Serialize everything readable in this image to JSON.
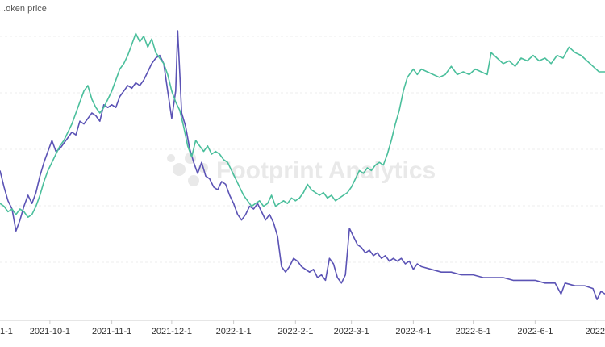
{
  "chart_data": {
    "type": "line",
    "xaxis_type": "date",
    "xlim": [
      "2021-09-06",
      "2022-07-06"
    ],
    "ylim_left": [
      0,
      1
    ],
    "ylim_right": [
      0,
      1
    ],
    "grid": "horizontal-dashed",
    "legend": {
      "position": "top-left",
      "entries": [
        "...oken price"
      ]
    },
    "x_ticks": [
      {
        "date": "2021-09-01",
        "label": "1-1"
      },
      {
        "date": "2021-10-01",
        "label": "2021-10-1"
      },
      {
        "date": "2021-11-01",
        "label": "2021-11-1"
      },
      {
        "date": "2021-12-01",
        "label": "2021-12-1"
      },
      {
        "date": "2022-01-01",
        "label": "2022-1-1"
      },
      {
        "date": "2022-02-01",
        "label": "2022-2-1"
      },
      {
        "date": "2022-03-01",
        "label": "2022-3-1"
      },
      {
        "date": "2022-04-01",
        "label": "2022-4-1"
      },
      {
        "date": "2022-05-01",
        "label": "2022-5-1"
      },
      {
        "date": "2022-06-01",
        "label": "2022-6-1"
      },
      {
        "date": "2022-07-01",
        "label": "2022"
      }
    ],
    "series": [
      {
        "color": "#5b53b5",
        "axis": "left",
        "points": [
          [
            "2021-09-06",
            0.49
          ],
          [
            "2021-09-08",
            0.43
          ],
          [
            "2021-09-10",
            0.38
          ],
          [
            "2021-09-12",
            0.35
          ],
          [
            "2021-09-14",
            0.27
          ],
          [
            "2021-09-16",
            0.31
          ],
          [
            "2021-09-18",
            0.36
          ],
          [
            "2021-09-20",
            0.4
          ],
          [
            "2021-09-22",
            0.37
          ],
          [
            "2021-09-24",
            0.41
          ],
          [
            "2021-09-26",
            0.47
          ],
          [
            "2021-09-28",
            0.52
          ],
          [
            "2021-09-30",
            0.56
          ],
          [
            "2021-10-02",
            0.6
          ],
          [
            "2021-10-04",
            0.56
          ],
          [
            "2021-10-06",
            0.57
          ],
          [
            "2021-10-08",
            0.59
          ],
          [
            "2021-10-10",
            0.61
          ],
          [
            "2021-10-12",
            0.63
          ],
          [
            "2021-10-14",
            0.62
          ],
          [
            "2021-10-16",
            0.67
          ],
          [
            "2021-10-18",
            0.66
          ],
          [
            "2021-10-20",
            0.68
          ],
          [
            "2021-10-22",
            0.7
          ],
          [
            "2021-10-24",
            0.69
          ],
          [
            "2021-10-26",
            0.67
          ],
          [
            "2021-10-28",
            0.73
          ],
          [
            "2021-10-30",
            0.72
          ],
          [
            "2021-11-01",
            0.73
          ],
          [
            "2021-11-03",
            0.72
          ],
          [
            "2021-11-05",
            0.76
          ],
          [
            "2021-11-07",
            0.78
          ],
          [
            "2021-11-09",
            0.8
          ],
          [
            "2021-11-11",
            0.79
          ],
          [
            "2021-11-13",
            0.81
          ],
          [
            "2021-11-15",
            0.8
          ],
          [
            "2021-11-17",
            0.82
          ],
          [
            "2021-11-19",
            0.85
          ],
          [
            "2021-11-21",
            0.88
          ],
          [
            "2021-11-23",
            0.9
          ],
          [
            "2021-11-25",
            0.91
          ],
          [
            "2021-11-27",
            0.88
          ],
          [
            "2021-11-29",
            0.78
          ],
          [
            "2021-12-01",
            0.68
          ],
          [
            "2021-12-03",
            0.78
          ],
          [
            "2021-12-04",
            1.0
          ],
          [
            "2021-12-05",
            0.85
          ],
          [
            "2021-12-06",
            0.7
          ],
          [
            "2021-12-08",
            0.65
          ],
          [
            "2021-12-10",
            0.57
          ],
          [
            "2021-12-12",
            0.52
          ],
          [
            "2021-12-14",
            0.48
          ],
          [
            "2021-12-16",
            0.52
          ],
          [
            "2021-12-18",
            0.47
          ],
          [
            "2021-12-20",
            0.46
          ],
          [
            "2021-12-22",
            0.43
          ],
          [
            "2021-12-24",
            0.42
          ],
          [
            "2021-12-26",
            0.45
          ],
          [
            "2021-12-28",
            0.44
          ],
          [
            "2021-12-30",
            0.4
          ],
          [
            "2022-01-01",
            0.37
          ],
          [
            "2022-01-03",
            0.33
          ],
          [
            "2022-01-05",
            0.31
          ],
          [
            "2022-01-07",
            0.33
          ],
          [
            "2022-01-09",
            0.36
          ],
          [
            "2022-01-11",
            0.35
          ],
          [
            "2022-01-13",
            0.37
          ],
          [
            "2022-01-15",
            0.34
          ],
          [
            "2022-01-17",
            0.31
          ],
          [
            "2022-01-19",
            0.33
          ],
          [
            "2022-01-21",
            0.3
          ],
          [
            "2022-01-23",
            0.25
          ],
          [
            "2022-01-25",
            0.14
          ],
          [
            "2022-01-27",
            0.12
          ],
          [
            "2022-01-29",
            0.14
          ],
          [
            "2022-01-31",
            0.17
          ],
          [
            "2022-02-02",
            0.16
          ],
          [
            "2022-02-04",
            0.14
          ],
          [
            "2022-02-06",
            0.13
          ],
          [
            "2022-02-08",
            0.12
          ],
          [
            "2022-02-10",
            0.13
          ],
          [
            "2022-02-12",
            0.1
          ],
          [
            "2022-02-14",
            0.11
          ],
          [
            "2022-02-16",
            0.09
          ],
          [
            "2022-02-18",
            0.17
          ],
          [
            "2022-02-20",
            0.15
          ],
          [
            "2022-02-22",
            0.1
          ],
          [
            "2022-02-24",
            0.08
          ],
          [
            "2022-02-26",
            0.11
          ],
          [
            "2022-02-28",
            0.28
          ],
          [
            "2022-03-02",
            0.25
          ],
          [
            "2022-03-04",
            0.22
          ],
          [
            "2022-03-06",
            0.21
          ],
          [
            "2022-03-08",
            0.19
          ],
          [
            "2022-03-10",
            0.2
          ],
          [
            "2022-03-12",
            0.18
          ],
          [
            "2022-03-14",
            0.19
          ],
          [
            "2022-03-16",
            0.17
          ],
          [
            "2022-03-18",
            0.18
          ],
          [
            "2022-03-20",
            0.16
          ],
          [
            "2022-03-22",
            0.17
          ],
          [
            "2022-03-24",
            0.16
          ],
          [
            "2022-03-26",
            0.17
          ],
          [
            "2022-03-28",
            0.15
          ],
          [
            "2022-03-30",
            0.16
          ],
          [
            "2022-04-01",
            0.13
          ],
          [
            "2022-04-03",
            0.15
          ],
          [
            "2022-04-05",
            0.14
          ],
          [
            "2022-04-10",
            0.13
          ],
          [
            "2022-04-15",
            0.12
          ],
          [
            "2022-04-20",
            0.12
          ],
          [
            "2022-04-25",
            0.11
          ],
          [
            "2022-05-01",
            0.11
          ],
          [
            "2022-05-06",
            0.1
          ],
          [
            "2022-05-11",
            0.1
          ],
          [
            "2022-05-16",
            0.1
          ],
          [
            "2022-05-21",
            0.09
          ],
          [
            "2022-05-26",
            0.09
          ],
          [
            "2022-06-01",
            0.09
          ],
          [
            "2022-06-06",
            0.08
          ],
          [
            "2022-06-11",
            0.08
          ],
          [
            "2022-06-14",
            0.04
          ],
          [
            "2022-06-16",
            0.08
          ],
          [
            "2022-06-21",
            0.07
          ],
          [
            "2022-06-26",
            0.07
          ],
          [
            "2022-06-30",
            0.06
          ],
          [
            "2022-07-02",
            0.02
          ],
          [
            "2022-07-04",
            0.05
          ],
          [
            "2022-07-06",
            0.04
          ]
        ]
      },
      {
        "color": "#4bbf9c",
        "axis": "right",
        "points": [
          [
            "2021-09-06",
            0.37
          ],
          [
            "2021-09-08",
            0.36
          ],
          [
            "2021-09-10",
            0.34
          ],
          [
            "2021-09-12",
            0.35
          ],
          [
            "2021-09-14",
            0.33
          ],
          [
            "2021-09-16",
            0.35
          ],
          [
            "2021-09-18",
            0.34
          ],
          [
            "2021-09-20",
            0.32
          ],
          [
            "2021-09-22",
            0.33
          ],
          [
            "2021-09-24",
            0.36
          ],
          [
            "2021-09-26",
            0.4
          ],
          [
            "2021-09-28",
            0.45
          ],
          [
            "2021-09-30",
            0.49
          ],
          [
            "2021-10-02",
            0.52
          ],
          [
            "2021-10-04",
            0.55
          ],
          [
            "2021-10-06",
            0.58
          ],
          [
            "2021-10-08",
            0.6
          ],
          [
            "2021-10-10",
            0.63
          ],
          [
            "2021-10-12",
            0.66
          ],
          [
            "2021-10-14",
            0.7
          ],
          [
            "2021-10-16",
            0.74
          ],
          [
            "2021-10-18",
            0.78
          ],
          [
            "2021-10-20",
            0.8
          ],
          [
            "2021-10-22",
            0.75
          ],
          [
            "2021-10-24",
            0.72
          ],
          [
            "2021-10-26",
            0.7
          ],
          [
            "2021-10-28",
            0.72
          ],
          [
            "2021-10-30",
            0.75
          ],
          [
            "2021-11-01",
            0.78
          ],
          [
            "2021-11-03",
            0.82
          ],
          [
            "2021-11-05",
            0.86
          ],
          [
            "2021-11-07",
            0.88
          ],
          [
            "2021-11-09",
            0.91
          ],
          [
            "2021-11-11",
            0.95
          ],
          [
            "2021-11-13",
            0.99
          ],
          [
            "2021-11-15",
            0.96
          ],
          [
            "2021-11-17",
            0.98
          ],
          [
            "2021-11-19",
            0.94
          ],
          [
            "2021-11-21",
            0.97
          ],
          [
            "2021-11-23",
            0.92
          ],
          [
            "2021-11-25",
            0.9
          ],
          [
            "2021-11-27",
            0.88
          ],
          [
            "2021-11-29",
            0.84
          ],
          [
            "2021-12-01",
            0.78
          ],
          [
            "2021-12-03",
            0.74
          ],
          [
            "2021-12-05",
            0.71
          ],
          [
            "2021-12-07",
            0.65
          ],
          [
            "2021-12-09",
            0.58
          ],
          [
            "2021-12-11",
            0.54
          ],
          [
            "2021-12-13",
            0.6
          ],
          [
            "2021-12-15",
            0.58
          ],
          [
            "2021-12-17",
            0.56
          ],
          [
            "2021-12-19",
            0.58
          ],
          [
            "2021-12-21",
            0.55
          ],
          [
            "2021-12-23",
            0.56
          ],
          [
            "2021-12-25",
            0.55
          ],
          [
            "2021-12-27",
            0.53
          ],
          [
            "2021-12-29",
            0.52
          ],
          [
            "2021-12-31",
            0.49
          ],
          [
            "2022-01-02",
            0.46
          ],
          [
            "2022-01-04",
            0.43
          ],
          [
            "2022-01-06",
            0.4
          ],
          [
            "2022-01-08",
            0.38
          ],
          [
            "2022-01-10",
            0.36
          ],
          [
            "2022-01-12",
            0.37
          ],
          [
            "2022-01-14",
            0.38
          ],
          [
            "2022-01-16",
            0.36
          ],
          [
            "2022-01-18",
            0.37
          ],
          [
            "2022-01-20",
            0.4
          ],
          [
            "2022-01-22",
            0.36
          ],
          [
            "2022-01-24",
            0.37
          ],
          [
            "2022-01-26",
            0.38
          ],
          [
            "2022-01-28",
            0.37
          ],
          [
            "2022-01-30",
            0.39
          ],
          [
            "2022-02-01",
            0.38
          ],
          [
            "2022-02-03",
            0.39
          ],
          [
            "2022-02-05",
            0.41
          ],
          [
            "2022-02-07",
            0.44
          ],
          [
            "2022-02-09",
            0.42
          ],
          [
            "2022-02-11",
            0.41
          ],
          [
            "2022-02-13",
            0.4
          ],
          [
            "2022-02-15",
            0.41
          ],
          [
            "2022-02-17",
            0.39
          ],
          [
            "2022-02-19",
            0.4
          ],
          [
            "2022-02-21",
            0.38
          ],
          [
            "2022-02-23",
            0.39
          ],
          [
            "2022-02-25",
            0.4
          ],
          [
            "2022-02-27",
            0.41
          ],
          [
            "2022-03-01",
            0.43
          ],
          [
            "2022-03-03",
            0.46
          ],
          [
            "2022-03-05",
            0.49
          ],
          [
            "2022-03-07",
            0.48
          ],
          [
            "2022-03-09",
            0.5
          ],
          [
            "2022-03-11",
            0.49
          ],
          [
            "2022-03-13",
            0.51
          ],
          [
            "2022-03-15",
            0.52
          ],
          [
            "2022-03-17",
            0.51
          ],
          [
            "2022-03-19",
            0.55
          ],
          [
            "2022-03-21",
            0.6
          ],
          [
            "2022-03-23",
            0.66
          ],
          [
            "2022-03-25",
            0.71
          ],
          [
            "2022-03-27",
            0.78
          ],
          [
            "2022-03-29",
            0.83
          ],
          [
            "2022-04-01",
            0.86
          ],
          [
            "2022-04-03",
            0.84
          ],
          [
            "2022-04-05",
            0.86
          ],
          [
            "2022-04-08",
            0.85
          ],
          [
            "2022-04-11",
            0.84
          ],
          [
            "2022-04-14",
            0.83
          ],
          [
            "2022-04-17",
            0.84
          ],
          [
            "2022-04-20",
            0.87
          ],
          [
            "2022-04-23",
            0.84
          ],
          [
            "2022-04-26",
            0.85
          ],
          [
            "2022-04-29",
            0.84
          ],
          [
            "2022-05-02",
            0.86
          ],
          [
            "2022-05-05",
            0.85
          ],
          [
            "2022-05-08",
            0.84
          ],
          [
            "2022-05-10",
            0.92
          ],
          [
            "2022-05-13",
            0.9
          ],
          [
            "2022-05-16",
            0.88
          ],
          [
            "2022-05-19",
            0.89
          ],
          [
            "2022-05-22",
            0.87
          ],
          [
            "2022-05-25",
            0.9
          ],
          [
            "2022-05-28",
            0.89
          ],
          [
            "2022-05-31",
            0.91
          ],
          [
            "2022-06-03",
            0.89
          ],
          [
            "2022-06-06",
            0.9
          ],
          [
            "2022-06-09",
            0.88
          ],
          [
            "2022-06-12",
            0.91
          ],
          [
            "2022-06-15",
            0.9
          ],
          [
            "2022-06-18",
            0.94
          ],
          [
            "2022-06-21",
            0.92
          ],
          [
            "2022-06-24",
            0.91
          ],
          [
            "2022-06-27",
            0.89
          ],
          [
            "2022-06-30",
            0.87
          ],
          [
            "2022-07-03",
            0.85
          ],
          [
            "2022-07-06",
            0.85
          ]
        ]
      }
    ],
    "watermark": "Footprint Analytics"
  }
}
